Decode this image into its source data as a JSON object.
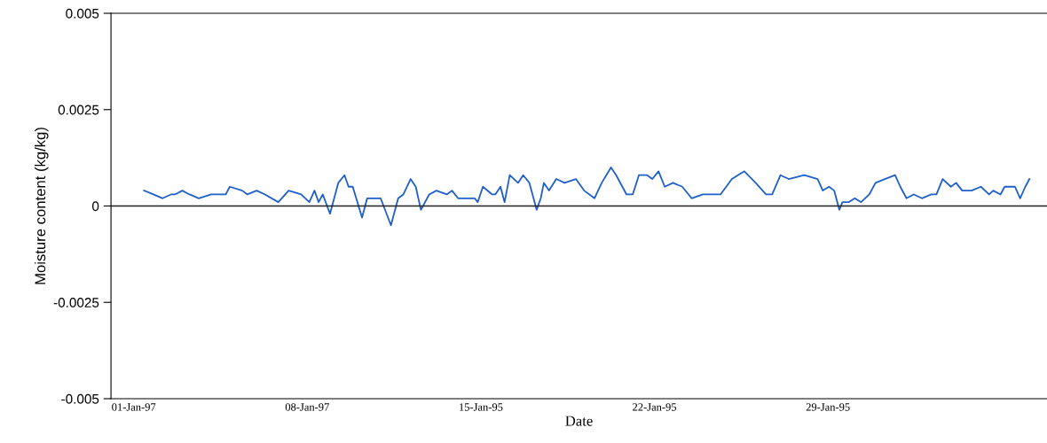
{
  "chart_data": {
    "type": "line",
    "xlabel": "Date",
    "ylabel": "Moisture content (kg/kg)",
    "xlim": [
      "1996-12-31T02:00",
      "1997-02-06T20:00"
    ],
    "xticks": [
      {
        "value": "1997-01-01",
        "label": "01-Jan-97"
      },
      {
        "value": "1997-01-08",
        "label": "08-Jan-97"
      },
      {
        "value": "1997-01-15",
        "label": "15-Jan-95"
      },
      {
        "value": "1997-01-22",
        "label": "22-Jan-95"
      },
      {
        "value": "1997-01-29",
        "label": "29-Jan-95"
      }
    ],
    "ylim": [
      -0.005,
      0.005
    ],
    "yticks": [
      {
        "value": -0.005,
        "label": "-0.005"
      },
      {
        "value": -0.0025,
        "label": "-0.0025"
      },
      0,
      0.0025,
      0.005
    ],
    "ref_lines": [
      {
        "axis": "y",
        "value": 0,
        "color": "#222222"
      }
    ],
    "grid": false,
    "marker": "none",
    "line_style": "solid",
    "series": [
      {
        "color": "#1f5fcc",
        "x": [
          "1997-01-01T10:00",
          "1997-01-01T19:00",
          "1997-01-02T04:00",
          "1997-01-02T12:00",
          "1997-01-02T16:00",
          "1997-01-02T23:00",
          "1997-01-03T06:00",
          "1997-01-03T15:00",
          "1997-01-04T03:00",
          "1997-01-04T10:00",
          "1997-01-04T17:00",
          "1997-01-04T21:00",
          "1997-01-05T09:00",
          "1997-01-05T14:00",
          "1997-01-05T23:00",
          "1997-01-06T07:00",
          "1997-01-06T20:00",
          "1997-01-07T06:00",
          "1997-01-07T18:00",
          "1997-01-08T02:00",
          "1997-01-08T07:00",
          "1997-01-08T11:00",
          "1997-01-08T15:00",
          "1997-01-08T22:00",
          "1997-01-09T01:00",
          "1997-01-09T06:00",
          "1997-01-09T12:00",
          "1997-01-09T16:00",
          "1997-01-09T20:00",
          "1997-01-10T05:00",
          "1997-01-10T10:00",
          "1997-01-10T23:00",
          "1997-01-11T09:00",
          "1997-01-11T16:00",
          "1997-01-11T21:00",
          "1997-01-12T04:00",
          "1997-01-12T09:00",
          "1997-01-12T14:00",
          "1997-01-12T22:00",
          "1997-01-13T05:00",
          "1997-01-13T15:00",
          "1997-01-13T20:00",
          "1997-01-14T02:00",
          "1997-01-14T18:00",
          "1997-01-14T21:00",
          "1997-01-15T02:00",
          "1997-01-15T11:00",
          "1997-01-15T14:00",
          "1997-01-15T19:00",
          "1997-01-15T23:00",
          "1997-01-16T04:00",
          "1997-01-16T12:00",
          "1997-01-16T17:00",
          "1997-01-16T23:00",
          "1997-01-17T06:00",
          "1997-01-17T10:00",
          "1997-01-17T13:00",
          "1997-01-17T18:00",
          "1997-01-18T01:00",
          "1997-01-18T09:00",
          "1997-01-18T20:00",
          "1997-01-19T04:00",
          "1997-01-19T14:00",
          "1997-01-19T21:00",
          "1997-01-20T06:00",
          "1997-01-20T11:00",
          "1997-01-20T21:00",
          "1997-01-21T03:00",
          "1997-01-21T09:00",
          "1997-01-21T17:00",
          "1997-01-21T22:00",
          "1997-01-22T04:00",
          "1997-01-22T10:00",
          "1997-01-22T18:00",
          "1997-01-23T03:00",
          "1997-01-23T12:00",
          "1997-01-23T23:00",
          "1997-01-24T05:00",
          "1997-01-24T16:00",
          "1997-01-25T03:00",
          "1997-01-25T15:00",
          "1997-01-26T02:00",
          "1997-01-26T12:00",
          "1997-01-26T18:00",
          "1997-01-27T02:00",
          "1997-01-27T10:00",
          "1997-01-28T01:00",
          "1997-01-28T14:00",
          "1997-01-28T19:00",
          "1997-01-29T01:00",
          "1997-01-29T06:00",
          "1997-01-29T11:00",
          "1997-01-29T14:00",
          "1997-01-29T20:00",
          "1997-01-30T02:00",
          "1997-01-30T08:00",
          "1997-01-30T16:00",
          "1997-01-30T22:00",
          "1997-01-31T07:00",
          "1997-01-31T17:00",
          "1997-01-31T22:00",
          "1997-02-01T04:00",
          "1997-02-01T11:00",
          "1997-02-01T19:00",
          "1997-02-02T04:00",
          "1997-02-02T09:00",
          "1997-02-02T15:00",
          "1997-02-02T23:00",
          "1997-02-03T04:00",
          "1997-02-03T10:00",
          "1997-02-03T19:00",
          "1997-02-04T04:00",
          "1997-02-04T12:00",
          "1997-02-04T16:00",
          "1997-02-04T23:00",
          "1997-02-05T03:00",
          "1997-02-05T13:00",
          "1997-02-05T18:00",
          "1997-02-05T23:00",
          "1997-02-06T03:00"
        ],
        "values": [
          0.0004,
          0.0003,
          0.0002,
          0.0003,
          0.0003,
          0.0004,
          0.0003,
          0.0002,
          0.0003,
          0.0003,
          0.0003,
          0.0005,
          0.0004,
          0.0003,
          0.0004,
          0.0003,
          0.0001,
          0.0004,
          0.0003,
          0.0001,
          0.0004,
          0.0001,
          0.0003,
          -0.0002,
          0.0001,
          0.0006,
          0.0008,
          0.0005,
          0.0005,
          -0.0003,
          0.0002,
          0.0002,
          -0.0005,
          0.0002,
          0.0003,
          0.0007,
          0.0005,
          -0.0001,
          0.0003,
          0.0004,
          0.0003,
          0.0004,
          0.0002,
          0.0002,
          0.0001,
          0.0005,
          0.0003,
          0.0003,
          0.0005,
          0.0001,
          0.0008,
          0.0006,
          0.0008,
          0.0006,
          -0.0001,
          0.0002,
          0.0006,
          0.0004,
          0.0007,
          0.0006,
          0.0007,
          0.0004,
          0.0002,
          0.0006,
          0.001,
          0.0008,
          0.0003,
          0.0003,
          0.0008,
          0.0008,
          0.0007,
          0.0009,
          0.0005,
          0.0006,
          0.0005,
          0.0002,
          0.0003,
          0.0003,
          0.0003,
          0.0007,
          0.0009,
          0.0006,
          0.0003,
          0.0003,
          0.0008,
          0.0007,
          0.0008,
          0.0007,
          0.0004,
          0.0005,
          0.0004,
          -0.0001,
          0.0001,
          0.0001,
          0.0002,
          0.0001,
          0.0003,
          0.0006,
          0.0007,
          0.0008,
          0.0005,
          0.0002,
          0.0003,
          0.0002,
          0.0003,
          0.0003,
          0.0007,
          0.0005,
          0.0006,
          0.0004,
          0.0004,
          0.0005,
          0.0003,
          0.0004,
          0.0003,
          0.0005,
          0.0005,
          0.0002,
          0.0005,
          0.0007
        ]
      }
    ]
  }
}
